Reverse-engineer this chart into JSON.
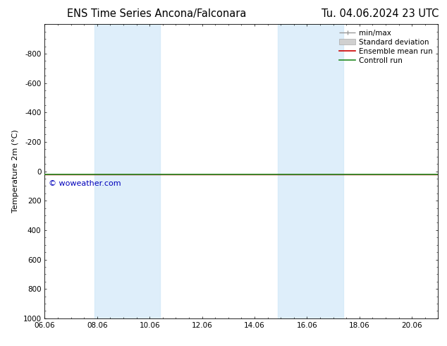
{
  "title_left": "ENS Time Series Ancona/Falconara",
  "title_right": "Tu. 04.06.2024 23 UTC",
  "ylabel": "Temperature 2m (°C)",
  "ylim_top": -1000,
  "ylim_bottom": 1000,
  "yticks": [
    -800,
    -600,
    -400,
    -200,
    0,
    200,
    400,
    600,
    800,
    1000
  ],
  "xlim_start": 6.0,
  "xlim_end": 21.0,
  "xticks_vals": [
    6.0,
    8.0,
    10.0,
    12.0,
    14.0,
    16.0,
    18.0,
    20.0
  ],
  "xtick_labels": [
    "06.06",
    "08.06",
    "10.06",
    "12.06",
    "14.06",
    "16.06",
    "18.06",
    "20.06"
  ],
  "shade_bands": [
    {
      "x_start": 8.0,
      "x_end": 9.5,
      "color": "#cde3f0",
      "alpha": 1.0
    },
    {
      "x_start": 9.5,
      "x_end": 10.5,
      "color": "#cde3f0",
      "alpha": 1.0
    },
    {
      "x_start": 15.0,
      "x_end": 16.0,
      "color": "#cde3f0",
      "alpha": 1.0
    },
    {
      "x_start": 16.0,
      "x_end": 17.5,
      "color": "#cde3f0",
      "alpha": 1.0
    }
  ],
  "shade_bands_v2": [
    {
      "x_start": 7.9,
      "x_end": 10.4,
      "color": "#d0e8f8",
      "alpha": 0.7
    },
    {
      "x_start": 14.9,
      "x_end": 17.4,
      "color": "#d0e8f8",
      "alpha": 0.7
    }
  ],
  "control_run_y": 20,
  "control_run_color": "#228B22",
  "ensemble_mean_color": "#cc0000",
  "min_max_color": "#999999",
  "std_dev_color": "#cccccc",
  "watermark": "© woweather.com",
  "watermark_color": "#0000bb",
  "background_color": "#ffffff",
  "title_fontsize": 10.5,
  "ylabel_fontsize": 8,
  "tick_fontsize": 7.5,
  "legend_fontsize": 7.5
}
